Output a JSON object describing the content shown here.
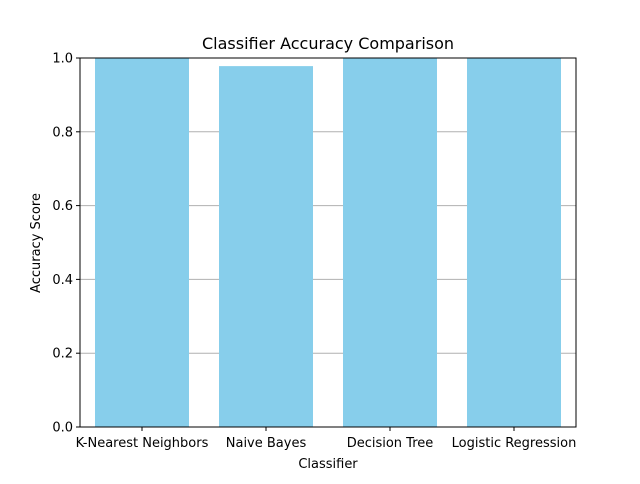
{
  "chart_data": {
    "type": "bar",
    "title": "Classifier Accuracy Comparison",
    "xlabel": "Classifier",
    "ylabel": "Accuracy Score",
    "categories": [
      "K-Nearest Neighbors",
      "Naive Bayes",
      "Decision Tree",
      "Logistic Regression"
    ],
    "values": [
      1.0,
      0.978,
      1.0,
      1.0
    ],
    "ylim": [
      0,
      1.0
    ],
    "yticks": [
      0.0,
      0.2,
      0.4,
      0.6,
      0.8,
      1.0
    ],
    "ytick_labels": [
      "0.0",
      "0.2",
      "0.4",
      "0.6",
      "0.8",
      "1.0"
    ],
    "grid": "y",
    "legend": "none",
    "bar_color": "#87ceeb",
    "grid_color": "#b0b0b0"
  }
}
